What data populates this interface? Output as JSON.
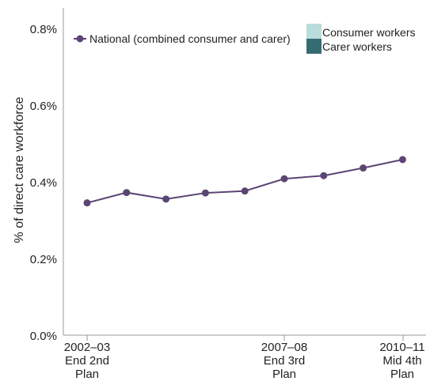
{
  "chart_data": {
    "type": "line",
    "title": "",
    "xlabel": "",
    "ylabel": "% of direct care workforce",
    "ylim": [
      0,
      0.8
    ],
    "y_ticks": [
      "0.0%",
      "0.2%",
      "0.4%",
      "0.6%",
      "0.8%"
    ],
    "x": [
      "2002–03",
      "",
      "",
      "",
      "",
      "2007–08",
      "",
      "",
      "2010–11"
    ],
    "x_tick_labels": [
      {
        "index": 0,
        "lines": [
          "2002–03",
          "End 2nd",
          "Plan"
        ]
      },
      {
        "index": 5,
        "lines": [
          "2007–08",
          "End 3rd",
          "Plan"
        ]
      },
      {
        "index": 8,
        "lines": [
          "2010–11",
          "Mid 4th",
          "Plan"
        ]
      }
    ],
    "series": [
      {
        "name": "National (combined consumer and carer)",
        "color": "#5b4673",
        "values": [
          0.345,
          0.372,
          0.355,
          0.371,
          0.376,
          0.408,
          0.416,
          0.436,
          0.458
        ]
      }
    ],
    "legend_extra": [
      {
        "name": "Consumer workers",
        "color": "#b9dcdc"
      },
      {
        "name": "Carer workers",
        "color": "#356c74"
      }
    ],
    "grid": false
  }
}
